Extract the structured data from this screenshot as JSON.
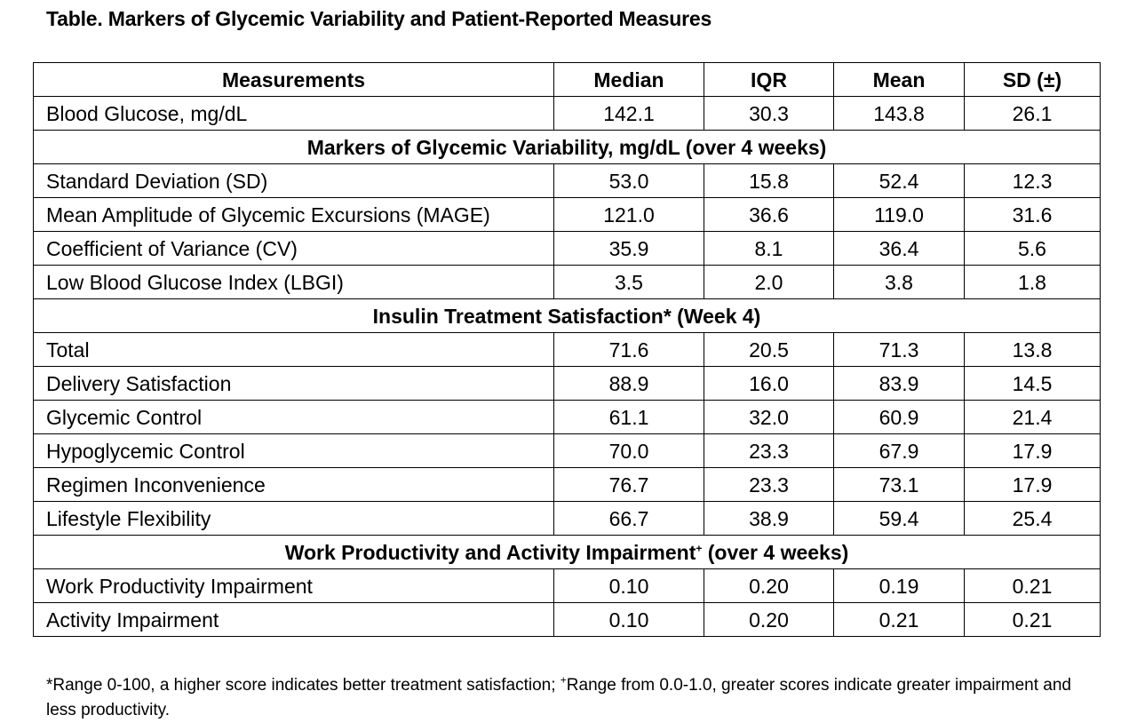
{
  "title": "Table. Markers of Glycemic Variability and Patient-Reported Measures",
  "headers": [
    "Measurements",
    "Median",
    "IQR",
    "Mean",
    "SD (±)"
  ],
  "rows": [
    {
      "label": "Blood Glucose, mg/dL",
      "values": [
        "142.1",
        "30.3",
        "143.8",
        "26.1"
      ]
    },
    {
      "section": "Markers of Glycemic Variability, mg/dL (over 4 weeks)"
    },
    {
      "label": "Standard Deviation (SD)",
      "values": [
        "53.0",
        "15.8",
        "52.4",
        "12.3"
      ]
    },
    {
      "label": "Mean Amplitude of Glycemic Excursions (MAGE)",
      "values": [
        "121.0",
        "36.6",
        "119.0",
        "31.6"
      ]
    },
    {
      "label": "Coefficient of Variance (CV)",
      "values": [
        "35.9",
        "8.1",
        "36.4",
        "5.6"
      ]
    },
    {
      "label": "Low Blood Glucose Index (LBGI)",
      "values": [
        "3.5",
        "2.0",
        "3.8",
        "1.8"
      ]
    },
    {
      "section": "Insulin Treatment Satisfaction* (Week 4)"
    },
    {
      "label": "Total",
      "values": [
        "71.6",
        "20.5",
        "71.3",
        "13.8"
      ]
    },
    {
      "label": "Delivery Satisfaction",
      "values": [
        "88.9",
        "16.0",
        "83.9",
        "14.5"
      ]
    },
    {
      "label": "Glycemic Control",
      "values": [
        "61.1",
        "32.0",
        "60.9",
        "21.4"
      ]
    },
    {
      "label": "Hypoglycemic Control",
      "values": [
        "70.0",
        "23.3",
        "67.9",
        "17.9"
      ]
    },
    {
      "label": "Regimen Inconvenience",
      "values": [
        "76.7",
        "23.3",
        "73.1",
        "17.9"
      ]
    },
    {
      "label": "Lifestyle Flexibility",
      "values": [
        "66.7",
        "38.9",
        "59.4",
        "25.4"
      ]
    },
    {
      "section": "Work Productivity and Activity Impairment",
      "sup": "+",
      "section_suffix": " (over 4 weeks)"
    },
    {
      "label": "Work Productivity Impairment",
      "values": [
        "0.10",
        "0.20",
        "0.19",
        "0.21"
      ]
    },
    {
      "label": "Activity Impairment",
      "values": [
        "0.10",
        "0.20",
        "0.21",
        "0.21"
      ]
    }
  ],
  "footnote": {
    "part1": "*Range 0-100, a higher score indicates better treatment satisfaction; ",
    "sup": "+",
    "part2": "Range from 0.0-1.0, greater scores indicate greater impairment and less productivity."
  }
}
